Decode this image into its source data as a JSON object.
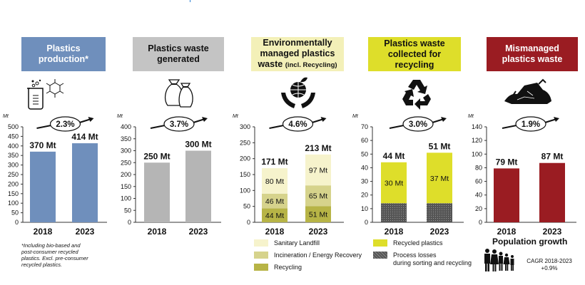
{
  "colors": {
    "production": "#6f8fbc",
    "generated": "#b5b5b5",
    "managed_header": "#f3f0b8",
    "landfill": "#f6f3cc",
    "incineration": "#d6d38c",
    "recycling": "#b7b446",
    "collected": "#dede2a",
    "losses": "#555555",
    "mismanaged": "#9a1c22"
  },
  "panels": [
    {
      "id": "production",
      "header": "Plastics production*",
      "header_line1": "Plastics",
      "header_line2": "production*",
      "icon": "beaker-molecule-icon"
    },
    {
      "id": "generated",
      "header": "Plastics waste generated",
      "header_line1": "Plastics waste",
      "header_line2": "generated",
      "icon": "garbage-bags-icon"
    },
    {
      "id": "managed",
      "header_line1": "Environmentally",
      "header_line2": "managed plastics",
      "header_line3": "waste",
      "header_note": "(incl. Recycling)",
      "icon": "globe-hands-icon"
    },
    {
      "id": "collected",
      "header_line1": "Plastics waste",
      "header_line2": "collected for",
      "header_line3": "recycling",
      "icon": "recycle-icon"
    },
    {
      "id": "mismanaged",
      "header_line1": "Mismanaged",
      "header_line2": "plastics waste",
      "icon": "waste-pile-icon"
    }
  ],
  "footnote": {
    "line1": "*Including bio-based and",
    "line2": "post-consumer recycled",
    "line3": "plastics. Excl. pre-consumer",
    "line4": "recycled plastics."
  },
  "legend_managed": [
    {
      "label": "Sanitary Landfill"
    },
    {
      "label": "Incineration / Energy Recovery"
    },
    {
      "label": "Recycling"
    }
  ],
  "legend_collected": [
    {
      "label": "Recycled plastics"
    },
    {
      "label": "Process losses",
      "label2": "during sorting and recycling"
    }
  ],
  "population": {
    "title": "Population growth",
    "line1": "CAGR 2018-2023",
    "line2": "+0.9%"
  },
  "chart_data": [
    {
      "type": "bar",
      "title": "Plastics production*",
      "ylabel": "Mt",
      "unit_label": "Mt",
      "categories": [
        "2018",
        "2023"
      ],
      "ylim": [
        0,
        500
      ],
      "yticks": [
        0,
        50,
        100,
        150,
        200,
        250,
        300,
        350,
        400,
        450,
        500
      ],
      "series": [
        {
          "name": "Plastics production",
          "values": [
            370,
            414
          ],
          "color": "#6f8fbc"
        }
      ],
      "totals": [
        "370 Mt",
        "414 Mt"
      ],
      "cagr": "2.3%"
    },
    {
      "type": "bar",
      "title": "Plastics waste generated",
      "ylabel": "Mt",
      "unit_label": "Mt",
      "categories": [
        "2018",
        "2023"
      ],
      "ylim": [
        0,
        400
      ],
      "yticks": [
        0,
        50,
        100,
        150,
        200,
        250,
        300,
        350,
        400
      ],
      "series": [
        {
          "name": "Plastics waste generated",
          "values": [
            250,
            300
          ],
          "color": "#b5b5b5"
        }
      ],
      "totals": [
        "250 Mt",
        "300 Mt"
      ],
      "cagr": "3.7%"
    },
    {
      "type": "bar",
      "stacked": true,
      "title": "Environmentally managed plastics waste (incl. Recycling)",
      "ylabel": "Mt",
      "unit_label": "Mt",
      "categories": [
        "2018",
        "2023"
      ],
      "ylim": [
        0,
        300
      ],
      "yticks": [
        0,
        50,
        100,
        150,
        200,
        250,
        300
      ],
      "series": [
        {
          "name": "Recycling",
          "values": [
            44,
            51
          ],
          "labels": [
            "44 Mt",
            "51 Mt"
          ],
          "color": "#b7b446"
        },
        {
          "name": "Incineration / Energy Recovery",
          "values": [
            46,
            65
          ],
          "labels": [
            "46 Mt",
            "65 Mt"
          ],
          "color": "#d6d38c"
        },
        {
          "name": "Sanitary Landfill",
          "values": [
            80,
            97
          ],
          "labels": [
            "80 Mt",
            "97 Mt"
          ],
          "color": "#f6f3cc"
        }
      ],
      "totals": [
        "171 Mt",
        "213 Mt"
      ],
      "cagr": "4.6%"
    },
    {
      "type": "bar",
      "stacked": true,
      "title": "Plastics waste collected for recycling",
      "ylabel": "Mt",
      "unit_label": "Mt",
      "categories": [
        "2018",
        "2023"
      ],
      "ylim": [
        0,
        70
      ],
      "yticks": [
        0,
        10,
        20,
        30,
        40,
        50,
        60,
        70
      ],
      "series": [
        {
          "name": "Process losses during sorting and recycling",
          "values": [
            14,
            14
          ],
          "labels": [
            "",
            ""
          ],
          "color": "#555555",
          "pattern": true
        },
        {
          "name": "Recycled plastics",
          "values": [
            30,
            37
          ],
          "labels": [
            "30 Mt",
            "37 Mt"
          ],
          "color": "#dede2a"
        }
      ],
      "totals": [
        "44 Mt",
        "51 Mt"
      ],
      "cagr": "3.0%"
    },
    {
      "type": "bar",
      "title": "Mismanaged plastics waste",
      "ylabel": "Mt",
      "unit_label": "Mt",
      "categories": [
        "2018",
        "2023"
      ],
      "ylim": [
        0,
        140
      ],
      "yticks": [
        0,
        20,
        40,
        60,
        80,
        100,
        120,
        140
      ],
      "series": [
        {
          "name": "Mismanaged plastics waste",
          "values": [
            79,
            87
          ],
          "color": "#9a1c22"
        }
      ],
      "totals": [
        "79 Mt",
        "87 Mt"
      ],
      "cagr": "1.9%"
    }
  ]
}
